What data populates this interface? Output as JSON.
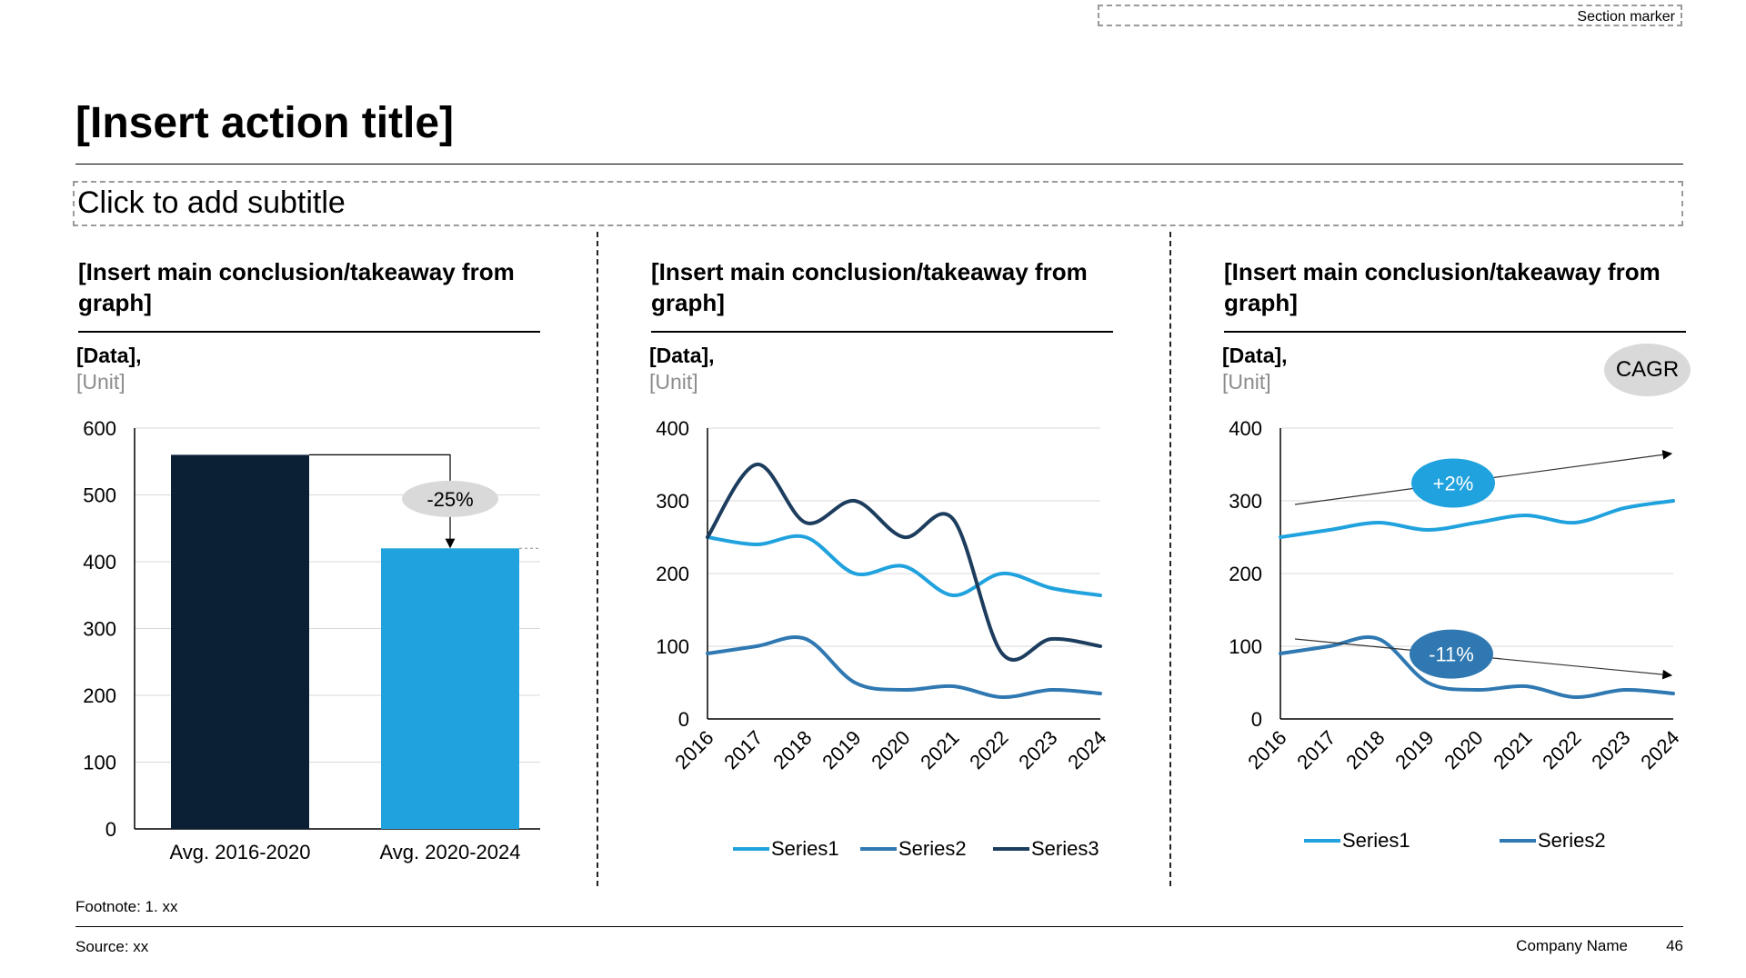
{
  "header": {
    "section_marker": "Section marker",
    "title": "[Insert action title]",
    "subtitle": "Click to add subtitle"
  },
  "panels": [
    {
      "conclusion": "[Insert main conclusion/takeaway from graph]",
      "data_label": "[Data],",
      "unit_label": "[Unit]"
    },
    {
      "conclusion": "[Insert main conclusion/takeaway from graph]",
      "data_label": "[Data],",
      "unit_label": "[Unit]"
    },
    {
      "conclusion": "[Insert main conclusion/takeaway from graph]",
      "data_label": "[Data],",
      "unit_label": "[Unit]",
      "badge": "CAGR"
    }
  ],
  "colors": {
    "navy": "#0b2034",
    "light_blue": "#20a2de",
    "mid_blue": "#2f78b1",
    "dark_blue": "#1d3d5e",
    "grid": "#d9d9d9",
    "bubble_gray": "#d9d9d9"
  },
  "chart_data": [
    {
      "type": "bar",
      "categories": [
        "Avg. 2016-2020",
        "Avg. 2020-2024"
      ],
      "values": [
        560,
        420
      ],
      "ylim": [
        0,
        600
      ],
      "yticks": [
        0,
        100,
        200,
        300,
        400,
        500,
        600
      ],
      "annotation": {
        "label": "-25%",
        "from": 0,
        "to": 1
      }
    },
    {
      "type": "line",
      "x": [
        "2016",
        "2017",
        "2018",
        "2019",
        "2020",
        "2021",
        "2022",
        "2023",
        "2024"
      ],
      "ylim": [
        0,
        400
      ],
      "yticks": [
        0,
        100,
        200,
        300,
        400
      ],
      "series": [
        {
          "name": "Series1",
          "color": "#20a2de",
          "values": [
            250,
            240,
            250,
            200,
            210,
            170,
            200,
            180,
            170
          ]
        },
        {
          "name": "Series2",
          "color": "#2f78b1",
          "values": [
            90,
            100,
            110,
            50,
            40,
            45,
            30,
            40,
            35
          ]
        },
        {
          "name": "Series3",
          "color": "#1d3d5e",
          "values": [
            250,
            350,
            270,
            300,
            250,
            275,
            90,
            110,
            100
          ]
        }
      ],
      "legend": "bottom"
    },
    {
      "type": "line",
      "x": [
        "2016",
        "2017",
        "2018",
        "2019",
        "2020",
        "2021",
        "2022",
        "2023",
        "2024"
      ],
      "ylim": [
        0,
        400
      ],
      "yticks": [
        0,
        100,
        200,
        300,
        400
      ],
      "series": [
        {
          "name": "Series1",
          "color": "#20a2de",
          "values": [
            250,
            260,
            270,
            260,
            270,
            280,
            270,
            290,
            300
          ]
        },
        {
          "name": "Series2",
          "color": "#2f78b1",
          "values": [
            90,
            100,
            110,
            50,
            40,
            45,
            30,
            40,
            35
          ]
        }
      ],
      "trends": [
        {
          "series": "Series1",
          "label": "+2%",
          "from": 295,
          "to": 365,
          "color": "#20a2de"
        },
        {
          "series": "Series2",
          "label": "-11%",
          "from": 110,
          "to": 60,
          "color": "#2f78b1"
        }
      ],
      "legend": "bottom"
    }
  ],
  "footer": {
    "footnote": "Footnote: 1. xx",
    "source": "Source: xx",
    "company": "Company Name",
    "page": "46"
  }
}
